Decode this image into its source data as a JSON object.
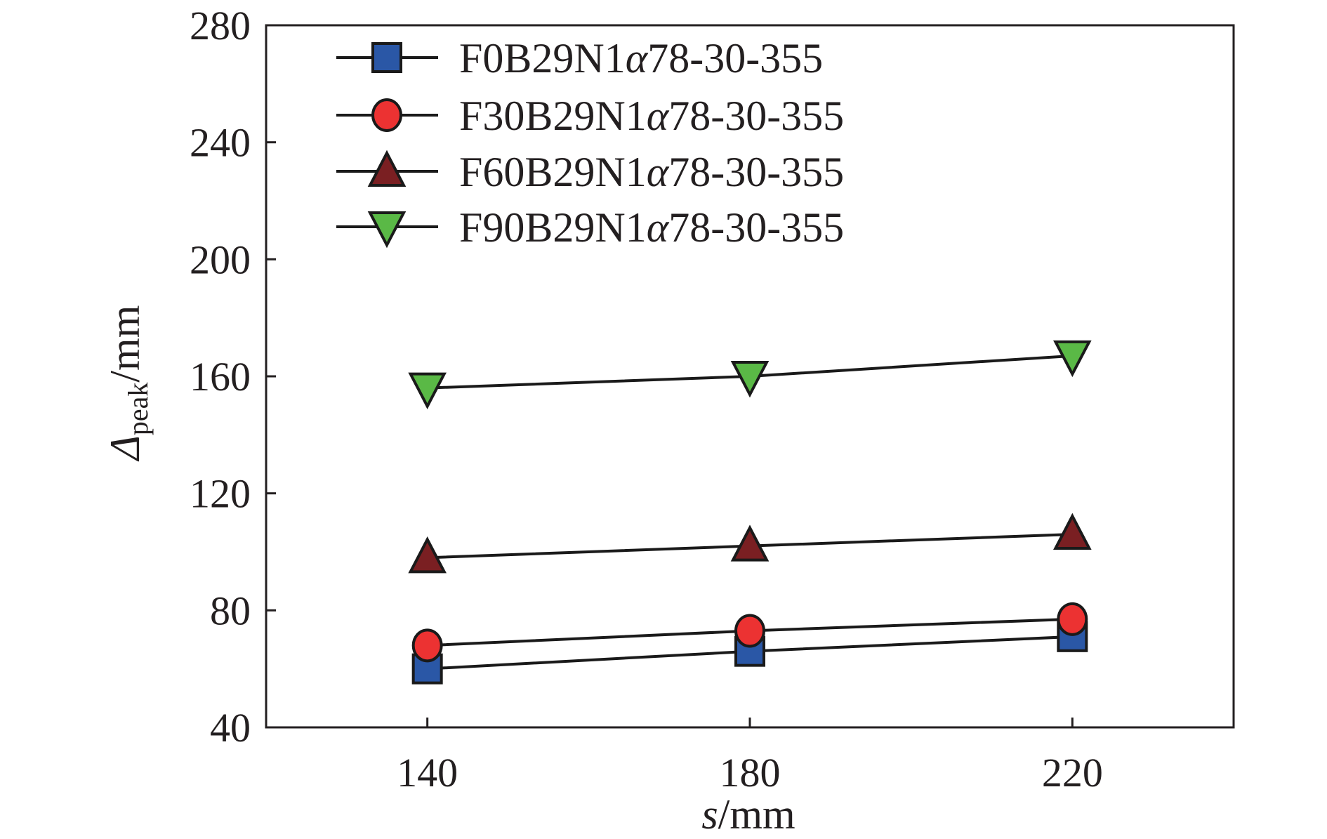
{
  "chart_data": {
    "type": "line",
    "title": "",
    "xlabel": "s/mm",
    "xlabel_parts": {
      "var": "s",
      "unit": "/mm"
    },
    "ylabel": "Δpeak/mm",
    "ylabel_parts": {
      "symbol": "Δ",
      "subscript": "peak",
      "unit": "/mm"
    },
    "xlim": [
      120,
      240
    ],
    "ylim": [
      40,
      280
    ],
    "xticks": [
      "140",
      "180",
      "220"
    ],
    "yticks": [
      "40",
      "80",
      "120",
      "160",
      "200",
      "240",
      "280"
    ],
    "x": [
      140,
      180,
      220
    ],
    "grid": false,
    "legend_position": "top-left",
    "series": [
      {
        "name": "F0B29N1α78-30-355",
        "marker": "square",
        "color": "#2a57a6",
        "values": [
          60,
          66,
          71
        ]
      },
      {
        "name": "F30B29N1α78-30-355",
        "marker": "circle",
        "color": "#ec3232",
        "values": [
          68,
          73,
          77
        ]
      },
      {
        "name": "F60B29N1α78-30-355",
        "marker": "triangle-up",
        "color": "#7a1f22",
        "values": [
          98,
          102,
          106
        ]
      },
      {
        "name": "F90B29N1α78-30-355",
        "marker": "triangle-down",
        "color": "#5ab946",
        "values": [
          156,
          160,
          167
        ]
      }
    ]
  }
}
